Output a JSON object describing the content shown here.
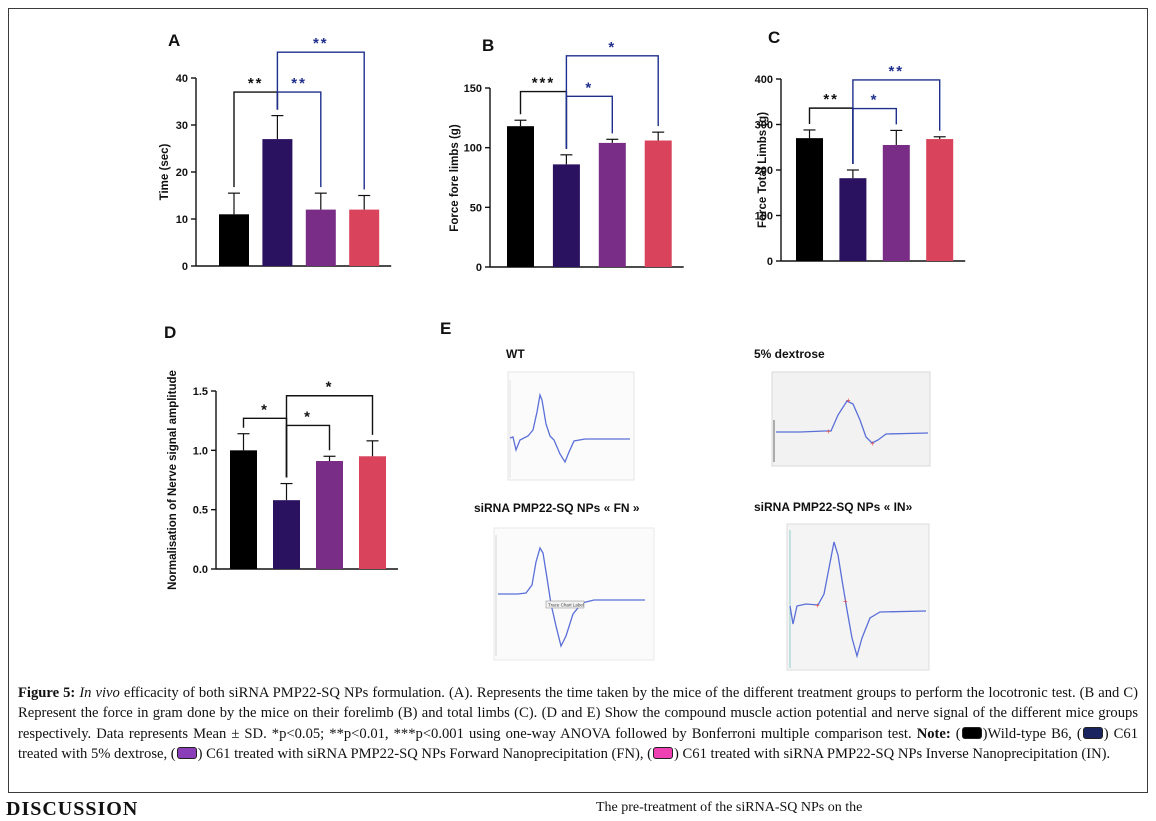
{
  "colors": {
    "wt": "#000000",
    "dextrose": "#2a1260",
    "fn": "#7a2d86",
    "in": "#d9435c",
    "sig_black": "#111111",
    "sig_blue": "#1f2f8c",
    "trace": "#5a6fd8"
  },
  "chart_data": [
    {
      "panel": "A",
      "type": "bar",
      "ylabel": "Time (sec)",
      "ylim": [
        0,
        40
      ],
      "yticks": [
        0,
        10,
        20,
        30,
        40
      ],
      "categories": [
        "Wild-type B6",
        "C61 5% dextrose",
        "C61 siRNA PMP22-SQ NPs FN",
        "C61 siRNA PMP22-SQ NPs IN"
      ],
      "values": [
        11,
        27,
        12,
        12
      ],
      "errors": [
        4.5,
        5,
        3.5,
        3
      ],
      "significance": [
        {
          "from": 0,
          "to": 1,
          "label": "**",
          "color": "black",
          "level": 37
        },
        {
          "from": 1,
          "to": 2,
          "label": "**",
          "color": "blue",
          "level": 37
        },
        {
          "from": 1,
          "to": 3,
          "label": "**",
          "color": "blue",
          "level": 45.5
        }
      ]
    },
    {
      "panel": "B",
      "type": "bar",
      "ylabel": "Force fore limbs (g)",
      "ylim": [
        0,
        150
      ],
      "yticks": [
        0,
        50,
        100,
        150
      ],
      "categories": [
        "Wild-type B6",
        "C61 5% dextrose",
        "C61 siRNA PMP22-SQ NPs FN",
        "C61 siRNA PMP22-SQ NPs IN"
      ],
      "values": [
        118,
        86,
        104,
        106
      ],
      "errors": [
        5,
        8,
        3,
        7
      ],
      "significance": [
        {
          "from": 0,
          "to": 1,
          "label": "***",
          "color": "black",
          "level": 147
        },
        {
          "from": 1,
          "to": 2,
          "label": "*",
          "color": "blue",
          "level": 143
        },
        {
          "from": 1,
          "to": 3,
          "label": "*",
          "color": "blue",
          "level": 177
        }
      ]
    },
    {
      "panel": "C",
      "type": "bar",
      "ylabel": "Force Total Limbs (g)",
      "ylim": [
        0,
        400
      ],
      "yticks": [
        0,
        100,
        200,
        300,
        400
      ],
      "categories": [
        "Wild-type B6",
        "C61 5% dextrose",
        "C61 siRNA PMP22-SQ NPs FN",
        "C61 siRNA PMP22-SQ NPs IN"
      ],
      "values": [
        270,
        182,
        255,
        268
      ],
      "errors": [
        18,
        18,
        32,
        5
      ],
      "significance": [
        {
          "from": 0,
          "to": 1,
          "label": "**",
          "color": "black",
          "level": 336
        },
        {
          "from": 1,
          "to": 2,
          "label": "*",
          "color": "blue",
          "level": 335
        },
        {
          "from": 1,
          "to": 3,
          "label": "**",
          "color": "blue",
          "level": 398
        }
      ]
    },
    {
      "panel": "D",
      "type": "bar",
      "ylabel": "Normalisation of Nerve signal amplitude",
      "ylim": [
        0,
        1.5
      ],
      "yticks": [
        0,
        0.5,
        1.0,
        1.5
      ],
      "ytick_labels": [
        "0.0",
        "0.5",
        "1.0",
        "1.5"
      ],
      "categories": [
        "Wild-type B6",
        "C61 5% dextrose",
        "C61 siRNA PMP22-SQ NPs FN",
        "C61 siRNA PMP22-SQ NPs IN"
      ],
      "values": [
        1.0,
        0.58,
        0.91,
        0.95
      ],
      "errors": [
        0.14,
        0.14,
        0.04,
        0.13
      ],
      "significance": [
        {
          "from": 0,
          "to": 1,
          "label": "*",
          "color": "black",
          "level": 1.27
        },
        {
          "from": 1,
          "to": 2,
          "label": "*",
          "color": "black",
          "level": 1.21
        },
        {
          "from": 1,
          "to": 3,
          "label": "*",
          "color": "black",
          "level": 1.46
        }
      ]
    }
  ],
  "panel_e": {
    "letter": "E",
    "titles": {
      "wt": "WT",
      "dextrose": "5% dextrose",
      "fn": "siRNA PMP22-SQ NPs « FN »",
      "in": "siRNA PMP22-SQ NPs « IN»"
    },
    "fn_inset_label": "Trace Chart Label"
  },
  "caption": {
    "figure_label": "Figure 5:",
    "italic_term": "In vivo",
    "text1": " efficacity of both siRNA PMP22-SQ NPs formulation. (A). Represents the time taken by the mice of the different treatment groups to perform the locotronic test. (B and C) Represent the force in gram done by the mice on their forelimb (B) and total limbs (C). (D and E) Show the compound muscle action potential and nerve signal of the different mice groups respectively. Data represents Mean ± SD. ",
    "stats": "*p<0.05; **p<0.01, ***p<0.001 using one-way ANOVA followed by Bonferroni multiple comparison test. ",
    "note_label": "Note:",
    "legend_wt": ")Wild-type B6, (",
    "legend_dex": ") C61 treated with 5% dextrose, (",
    "legend_fn": ") C61 treated with siRNA PMP22-SQ NPs Forward Nanoprecipitation (FN), (",
    "legend_in": ") C61 treated with siRNA PMP22-SQ NPs Inverse Nanoprecipitation (IN)."
  },
  "footer": {
    "heading": "DISCUSSION",
    "continued_text": "The pre-treatment of the siRNA-SQ NPs on the"
  }
}
